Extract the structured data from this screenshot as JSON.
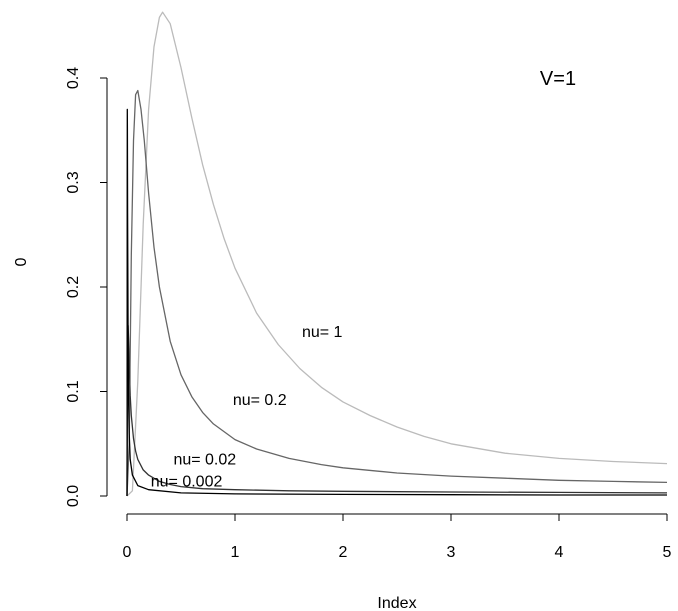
{
  "chart_data": {
    "type": "line",
    "title": "",
    "xlabel": "Index",
    "ylabel": "0",
    "xlim": [
      -0.2,
      5.1
    ],
    "ylim": [
      -0.02,
      0.47
    ],
    "x_ticks": [
      0,
      1,
      2,
      3,
      4,
      5
    ],
    "x_tick_labels": [
      "0",
      "1",
      "2",
      "3",
      "4",
      "5"
    ],
    "y_ticks": [
      0.0,
      0.1,
      0.2,
      0.3,
      0.4
    ],
    "y_tick_labels": [
      "0.0",
      "0.1",
      "0.2",
      "0.3",
      "0.4"
    ],
    "grid": false,
    "annotation": "V=1",
    "series": [
      {
        "label": "nu= 1",
        "color": "#bbbbbb",
        "label_at": [
          1.62,
          0.152
        ],
        "x": [
          0.0,
          0.05,
          0.1,
          0.15,
          0.2,
          0.25,
          0.3,
          0.33,
          0.4,
          0.5,
          0.6,
          0.7,
          0.8,
          0.9,
          1.0,
          1.2,
          1.4,
          1.6,
          1.8,
          2.0,
          2.25,
          2.5,
          2.75,
          3.0,
          3.5,
          4.0,
          4.5,
          5.0
        ],
        "y": [
          0.0,
          0.005,
          0.11,
          0.26,
          0.37,
          0.43,
          0.458,
          0.463,
          0.452,
          0.41,
          0.362,
          0.317,
          0.279,
          0.246,
          0.218,
          0.175,
          0.145,
          0.122,
          0.104,
          0.09,
          0.077,
          0.066,
          0.057,
          0.05,
          0.041,
          0.036,
          0.033,
          0.031
        ]
      },
      {
        "label": "nu= 0.2",
        "color": "#666666",
        "label_at": [
          0.98,
          0.087
        ],
        "x": [
          0.0,
          0.02,
          0.04,
          0.06,
          0.08,
          0.1,
          0.13,
          0.16,
          0.2,
          0.25,
          0.3,
          0.4,
          0.5,
          0.6,
          0.7,
          0.8,
          1.0,
          1.2,
          1.5,
          1.8,
          2.0,
          2.5,
          3.0,
          3.5,
          4.0,
          4.5,
          5.0
        ],
        "y": [
          0.0,
          0.05,
          0.23,
          0.34,
          0.384,
          0.388,
          0.37,
          0.34,
          0.29,
          0.238,
          0.2,
          0.148,
          0.116,
          0.095,
          0.08,
          0.069,
          0.054,
          0.045,
          0.036,
          0.03,
          0.027,
          0.022,
          0.019,
          0.017,
          0.015,
          0.014,
          0.013
        ]
      },
      {
        "label": "nu= 0.02",
        "color": "#333333",
        "label_at": [
          0.43,
          0.03
        ],
        "x": [
          0.0,
          0.005,
          0.01,
          0.015,
          0.02,
          0.03,
          0.04,
          0.06,
          0.08,
          0.1,
          0.15,
          0.2,
          0.3,
          0.4,
          0.5,
          0.7,
          1.0,
          1.5,
          2.0,
          3.0,
          4.0,
          5.0
        ],
        "y": [
          0.0,
          0.11,
          0.163,
          0.15,
          0.128,
          0.096,
          0.077,
          0.055,
          0.043,
          0.035,
          0.025,
          0.02,
          0.014,
          0.011,
          0.009,
          0.007,
          0.006,
          0.005,
          0.0045,
          0.0038,
          0.0034,
          0.003
        ]
      },
      {
        "label": "nu= 0.002",
        "color": "#000000",
        "label_at": [
          0.22,
          0.009
        ],
        "x": [
          0.0,
          0.001,
          0.002,
          0.003,
          0.004,
          0.006,
          0.008,
          0.01,
          0.015,
          0.02,
          0.03,
          0.05,
          0.1,
          0.2,
          0.5,
          1.0,
          2.0,
          3.0,
          4.0,
          5.0
        ],
        "y": [
          0.0,
          0.05,
          0.3,
          0.37,
          0.35,
          0.27,
          0.2,
          0.15,
          0.09,
          0.06,
          0.035,
          0.02,
          0.01,
          0.006,
          0.003,
          0.002,
          0.0015,
          0.0012,
          0.001,
          0.001
        ]
      }
    ]
  }
}
